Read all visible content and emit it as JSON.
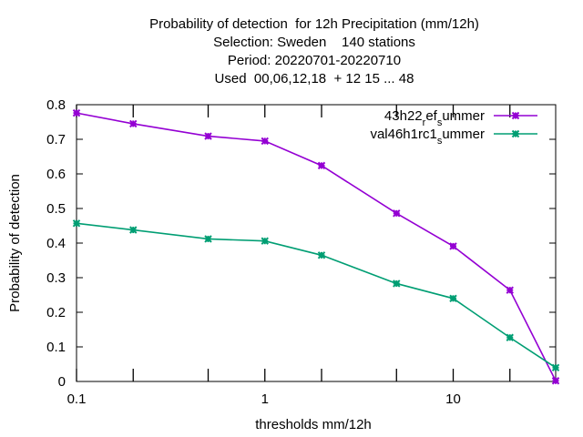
{
  "chart_data": {
    "type": "line",
    "title_lines": [
      "Probability of detection  for 12h Precipitation (mm/12h)",
      "Selection: Sweden    140 stations",
      "Period: 20220701-20220710",
      "Used  00,06,12,18  + 12 15 ... 48"
    ],
    "xlabel": "thresholds mm/12h",
    "ylabel": "Probability of detection",
    "xscale": "log",
    "xlim": [
      0.1,
      35
    ],
    "ylim": [
      0,
      0.8
    ],
    "x_ticks": [
      0.1,
      1,
      10
    ],
    "x_tick_labels": [
      "0.1",
      "1",
      "10"
    ],
    "x_minor_ticks": [
      0.2,
      0.5,
      2,
      5,
      20
    ],
    "y_ticks": [
      0,
      0.1,
      0.2,
      0.3,
      0.4,
      0.5,
      0.6,
      0.7,
      0.8
    ],
    "y_tick_labels": [
      "0",
      "0.1",
      "0.2",
      "0.3",
      "0.4",
      "0.5",
      "0.6",
      "0.7",
      "0.8"
    ],
    "x": [
      0.1,
      0.2,
      0.5,
      1,
      2,
      5,
      10,
      20,
      35
    ],
    "legend_position": "top-right",
    "grid": false,
    "series": [
      {
        "name_parts": [
          {
            "text": "43h22"
          },
          {
            "text": "r",
            "sub": true
          },
          {
            "text": "ef"
          },
          {
            "text": "s",
            "sub": true
          },
          {
            "text": "ummer"
          }
        ],
        "color": "#9400d3",
        "values": [
          0.776,
          0.745,
          0.709,
          0.695,
          0.624,
          0.486,
          0.391,
          0.264,
          0.002
        ]
      },
      {
        "name_parts": [
          {
            "text": "val46h1rc1"
          },
          {
            "text": "s",
            "sub": true
          },
          {
            "text": "ummer"
          }
        ],
        "color": "#009e73",
        "values": [
          0.457,
          0.438,
          0.412,
          0.406,
          0.365,
          0.283,
          0.24,
          0.127,
          0.04
        ]
      }
    ]
  }
}
